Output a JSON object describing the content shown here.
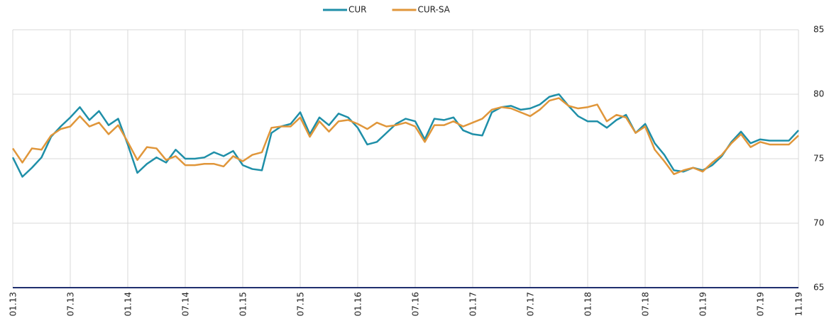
{
  "chart_data": {
    "type": "line",
    "categories": [
      "01.13",
      null,
      null,
      null,
      null,
      null,
      "07.13",
      null,
      null,
      null,
      null,
      null,
      "01.14",
      null,
      null,
      null,
      null,
      null,
      "07.14",
      null,
      null,
      null,
      null,
      null,
      "01.15",
      null,
      null,
      null,
      null,
      null,
      "07.15",
      null,
      null,
      null,
      null,
      null,
      "01.16",
      null,
      null,
      null,
      null,
      null,
      "07.16",
      null,
      null,
      null,
      null,
      null,
      "01.17",
      null,
      null,
      null,
      null,
      null,
      "07.17",
      null,
      null,
      null,
      null,
      null,
      "01.18",
      null,
      null,
      null,
      null,
      null,
      "07.18",
      null,
      null,
      null,
      null,
      null,
      "01.19",
      null,
      null,
      null,
      null,
      null,
      "07.19",
      null,
      null,
      null,
      "11.19"
    ],
    "series": [
      {
        "name": "CUR",
        "color": "#1f8fa8",
        "values": [
          75.1,
          73.6,
          74.3,
          75.1,
          76.7,
          77.5,
          78.2,
          79.0,
          78.0,
          78.7,
          77.6,
          78.1,
          76.1,
          73.9,
          74.6,
          75.1,
          74.7,
          75.7,
          75.0,
          75.0,
          75.1,
          75.5,
          75.2,
          75.6,
          74.5,
          74.2,
          74.1,
          77.0,
          77.5,
          77.7,
          78.6,
          76.9,
          78.2,
          77.6,
          78.5,
          78.2,
          77.4,
          76.1,
          76.3,
          77.0,
          77.7,
          78.1,
          77.9,
          76.5,
          78.1,
          78.0,
          78.2,
          77.2,
          76.9,
          76.8,
          78.6,
          79.0,
          79.1,
          78.8,
          78.9,
          79.2,
          79.8,
          80.0,
          79.1,
          78.3,
          77.9,
          77.9,
          77.4,
          78.0,
          78.4,
          77.0,
          77.7,
          76.2,
          75.3,
          74.1,
          74.0,
          74.3,
          74.1,
          74.5,
          75.2,
          76.3,
          77.1,
          76.2,
          76.5,
          76.4,
          76.4,
          76.4,
          77.2
        ]
      },
      {
        "name": "CUR-SA",
        "color": "#e0963a",
        "values": [
          75.8,
          74.7,
          75.8,
          75.7,
          76.8,
          77.3,
          77.5,
          78.3,
          77.5,
          77.8,
          76.9,
          77.6,
          76.3,
          74.9,
          75.9,
          75.8,
          74.9,
          75.2,
          74.5,
          74.5,
          74.6,
          74.6,
          74.4,
          75.2,
          74.8,
          75.3,
          75.5,
          77.4,
          77.5,
          77.5,
          78.2,
          76.7,
          77.9,
          77.1,
          77.9,
          78.0,
          77.7,
          77.3,
          77.8,
          77.5,
          77.6,
          77.8,
          77.5,
          76.3,
          77.6,
          77.6,
          77.9,
          77.5,
          77.8,
          78.1,
          78.8,
          79.0,
          78.9,
          78.6,
          78.3,
          78.8,
          79.5,
          79.7,
          79.1,
          78.9,
          79.0,
          79.2,
          77.9,
          78.4,
          78.2,
          77.0,
          77.5,
          75.7,
          74.8,
          73.8,
          74.1,
          74.3,
          74.0,
          74.7,
          75.3,
          76.2,
          76.9,
          75.9,
          76.3,
          76.1,
          76.1,
          76.1,
          76.8
        ]
      }
    ],
    "ylim": [
      65,
      85
    ],
    "yticks": [
      65,
      70,
      75,
      80,
      85
    ],
    "grid": true,
    "legend": "top"
  }
}
